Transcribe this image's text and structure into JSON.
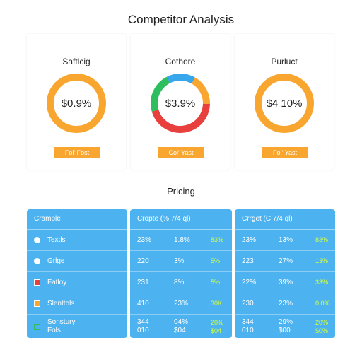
{
  "page_title": "Competitor Analysis",
  "cards": [
    {
      "title": "Saftlcig",
      "value": "$0.9%",
      "button": "Fol' Fost",
      "ring": "single",
      "color": "#f8a630"
    },
    {
      "title": "Cothore",
      "value": "$3.9%",
      "button": "Col' Yast",
      "ring": "multi",
      "segments": [
        {
          "color": "#f8a630",
          "fraction": 0.17
        },
        {
          "color": "#e8403c",
          "fraction": 0.45
        },
        {
          "color": "#2ebd5f",
          "fraction": 0.22
        },
        {
          "color": "#38a6ea",
          "fraction": 0.16
        }
      ]
    },
    {
      "title": "Purluct",
      "value": "$4 10%",
      "button": "Fol' Yast",
      "ring": "single",
      "color": "#f8a630"
    }
  ],
  "pricing": {
    "title": "Pricing",
    "label_panel": {
      "header": "Crample",
      "rows": [
        {
          "label": "Textls",
          "marker": "dot",
          "color": "#ffffff"
        },
        {
          "label": "Grlge",
          "marker": "dot",
          "color": "#ffffff"
        },
        {
          "label": "Fatloy",
          "marker": "square",
          "color": "#e8403c"
        },
        {
          "label": "Slenttols",
          "marker": "square",
          "color": "#f8a630"
        },
        {
          "label": "Sonstury",
          "label2": "Fols",
          "marker": "square-outline",
          "color": "#2ebd5f"
        }
      ]
    },
    "panels": [
      {
        "header": "Cropte (% 7/4 ql)",
        "rows": [
          [
            "23%",
            "1.8%",
            "83%"
          ],
          [
            "220",
            "3%",
            "5%"
          ],
          [
            "231",
            "8%",
            "5%"
          ],
          [
            "410",
            "23%",
            "30K"
          ],
          [
            "344\n010",
            "04%\n$04",
            "20%\n$04"
          ]
        ]
      },
      {
        "header": "Crrget (C 7/4 ql)",
        "rows": [
          [
            "23%",
            "13%",
            "83%"
          ],
          [
            "223",
            "27%",
            "13%"
          ],
          [
            "22%",
            "39%",
            "33%"
          ],
          [
            "230",
            "23%",
            "0.0%"
          ],
          [
            "344\n010",
            "29%\n$00",
            "20%\n$0%"
          ]
        ]
      }
    ],
    "highlight_color": "#d6ff3a"
  }
}
